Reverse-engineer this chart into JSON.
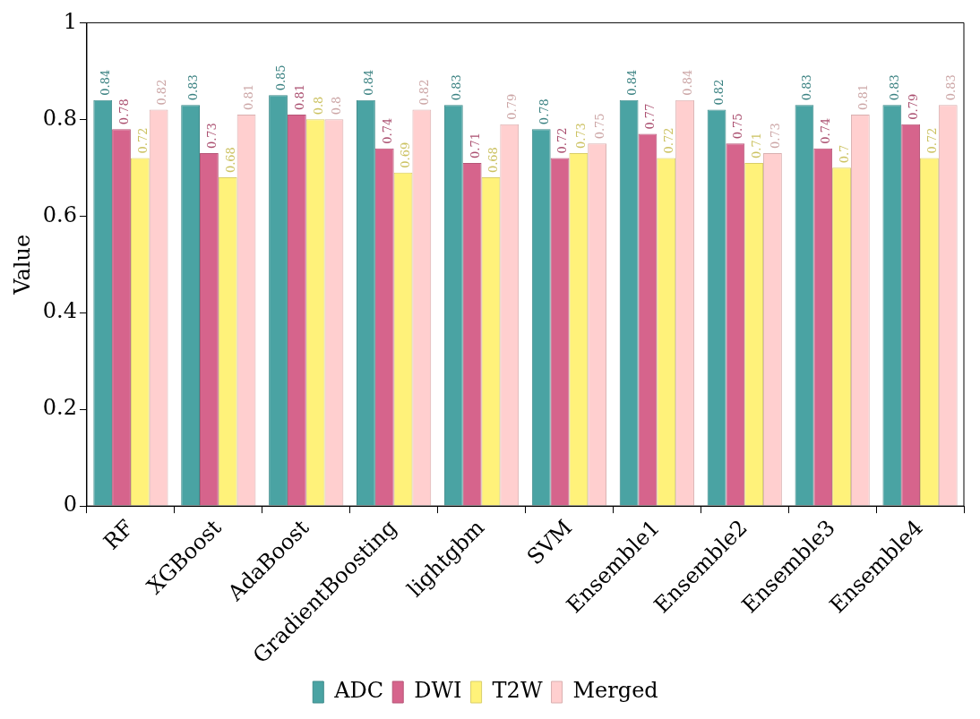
{
  "chart_data": {
    "type": "bar",
    "ylabel": "Value",
    "categories": [
      "RF",
      "XGBoost",
      "AdaBoost",
      "GradientBoosting",
      "lightgbm",
      "SVM",
      "Ensemble1",
      "Ensemble2",
      "Ensemble3",
      "Ensemble4"
    ],
    "series": [
      {
        "name": "ADC",
        "color": "#4aa3a3",
        "values": [
          0.84,
          0.83,
          0.85,
          0.84,
          0.83,
          0.78,
          0.84,
          0.82,
          0.83,
          0.83
        ]
      },
      {
        "name": "DWI",
        "color": "#d6648c",
        "values": [
          0.78,
          0.73,
          0.81,
          0.74,
          0.71,
          0.72,
          0.77,
          0.75,
          0.74,
          0.79
        ]
      },
      {
        "name": "T2W",
        "color": "#fff27a",
        "values": [
          0.72,
          0.68,
          0.8,
          0.69,
          0.68,
          0.73,
          0.72,
          0.71,
          0.7,
          0.72
        ]
      },
      {
        "name": "Merged",
        "color": "#ffcfcf",
        "values": [
          0.82,
          0.81,
          0.8,
          0.82,
          0.79,
          0.75,
          0.84,
          0.73,
          0.81,
          0.83
        ]
      }
    ],
    "ylim": [
      0,
      1
    ],
    "yticks": [
      0,
      0.2,
      0.4,
      0.6,
      0.8,
      1
    ],
    "grid": false,
    "legend": "bottom",
    "data_labels": true
  }
}
